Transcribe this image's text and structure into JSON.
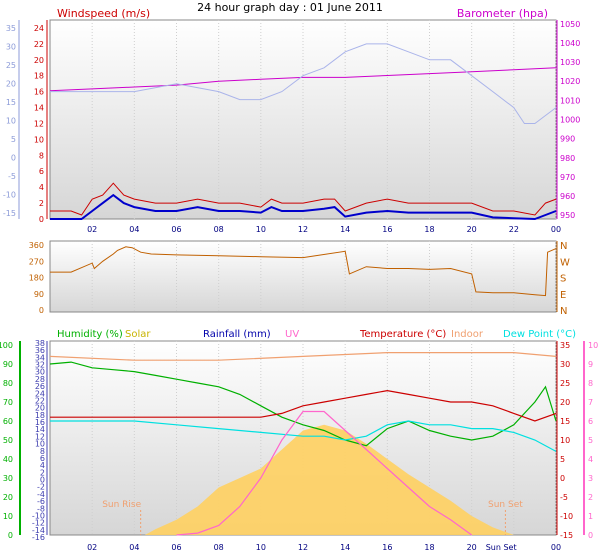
{
  "title": "24 hour graph day : 01 June 2011",
  "colors": {
    "wind": "#cc0000",
    "gust": "#cc0000",
    "avg": "#0000cc",
    "baro": "#cc00cc",
    "temp_light": "#aab4ea",
    "dir": "#c06000",
    "humidity": "#00b000",
    "solar": "#ffd060",
    "rainfall": "#0000aa",
    "uv": "#ff66cc",
    "temperature": "#cc0000",
    "indoor": "#f0a070",
    "dewpoint": "#00e0e0"
  },
  "x_ticks": [
    "02",
    "04",
    "06",
    "08",
    "10",
    "12",
    "14",
    "16",
    "18",
    "20",
    "22",
    "00"
  ],
  "x_ticks_bottom": [
    "02",
    "04",
    "06",
    "08",
    "10",
    "12",
    "14",
    "16",
    "18",
    "20",
    "Sun Set",
    "00"
  ],
  "chart_data": [
    {
      "type": "line",
      "title": "Windspeed (m/s)",
      "right_label": "Barometer (hpa)",
      "left_axis_blue": [
        "35",
        "30",
        "25",
        "20",
        "15",
        "10",
        "5",
        "0",
        "-5",
        "-10",
        "-15"
      ],
      "yticks_left": [
        "24",
        "22",
        "20",
        "18",
        "16",
        "14",
        "12",
        "10",
        "8",
        "6",
        "4",
        "2",
        "0"
      ],
      "yticks_right": [
        "1050",
        "1040",
        "1030",
        "1020",
        "1010",
        "1000",
        "990",
        "980",
        "970",
        "960",
        "950"
      ],
      "ylim_left": [
        0,
        25
      ],
      "ylim_right": [
        948,
        1052
      ],
      "series": [
        {
          "name": "Windspeed (m/s)",
          "role": "gust",
          "x": [
            0,
            1,
            1.5,
            2,
            2.5,
            3,
            3.5,
            4,
            5,
            6,
            7,
            8,
            9,
            10,
            10.5,
            11,
            12,
            13,
            13.5,
            14,
            15,
            16,
            17,
            18,
            19,
            20,
            21,
            22,
            23,
            23.5,
            24
          ],
          "y": [
            1,
            1,
            0.5,
            2.5,
            3,
            4.5,
            3,
            2.5,
            2,
            2,
            2.5,
            2,
            2,
            1.5,
            2.5,
            2,
            2,
            2.5,
            2.5,
            1,
            2,
            2.5,
            2,
            2,
            2,
            2,
            1,
            1,
            0.5,
            2,
            2.5
          ]
        },
        {
          "name": "Average",
          "role": "avg",
          "x": [
            0,
            1,
            1.5,
            2,
            2.5,
            3,
            3.5,
            4,
            5,
            6,
            7,
            8,
            9,
            10,
            10.5,
            11,
            12,
            13,
            13.5,
            14,
            15,
            16,
            17,
            18,
            19,
            20,
            21,
            22,
            23,
            23.5,
            24
          ],
          "y": [
            0,
            0,
            0,
            1,
            2,
            3,
            2,
            1.5,
            1,
            1,
            1.5,
            1,
            1,
            0.8,
            1.5,
            1,
            1,
            1.3,
            1.5,
            0.3,
            0.8,
            1,
            0.8,
            0.8,
            0.8,
            0.8,
            0.2,
            0.1,
            0,
            0.5,
            1
          ]
        },
        {
          "name": "Barometer (hpa)",
          "role": "baro",
          "axis": "right",
          "x": [
            0,
            2,
            4,
            6,
            8,
            10,
            12,
            14,
            16,
            18,
            20,
            22,
            24
          ],
          "y": [
            1015,
            1016,
            1017,
            1018,
            1020,
            1021,
            1022,
            1022,
            1023,
            1024,
            1025,
            1026,
            1027
          ]
        },
        {
          "name": "Temperature (secondary)",
          "role": "temp_light",
          "x": [
            0,
            2,
            4,
            6,
            8,
            9,
            10,
            11,
            12,
            13,
            14,
            15,
            16,
            17,
            18,
            19,
            20,
            21,
            22,
            22.5,
            23,
            23.5,
            24
          ],
          "y": [
            16,
            16,
            16,
            17,
            16,
            15,
            15,
            16,
            18,
            19,
            21,
            22,
            22,
            21,
            20,
            20,
            18,
            16,
            14,
            12,
            12,
            13,
            14
          ]
        }
      ]
    },
    {
      "type": "line",
      "title": "Wind direction",
      "yticks_left": [
        "360",
        "270",
        "180",
        "90",
        "0"
      ],
      "compass": [
        "N",
        "W",
        "S",
        "E",
        "N"
      ],
      "ylim": [
        0,
        360
      ],
      "series": [
        {
          "name": "Direction",
          "x": [
            0,
            1,
            2,
            2.1,
            2.5,
            3,
            3.2,
            3.6,
            3.9,
            4.3,
            4.8,
            6,
            8,
            10,
            12,
            14,
            14.2,
            15,
            16,
            17,
            18,
            19,
            20,
            20.2,
            21,
            22,
            23,
            23.5,
            23.6,
            24
          ],
          "y": [
            210,
            210,
            260,
            230,
            270,
            310,
            330,
            350,
            345,
            320,
            310,
            305,
            300,
            295,
            290,
            325,
            200,
            240,
            230,
            230,
            225,
            230,
            200,
            100,
            95,
            95,
            85,
            80,
            320,
            340
          ]
        }
      ]
    },
    {
      "type": "line",
      "series_labels": [
        "Humidity (%)",
        "Solar",
        "Rainfall (mm)",
        "UV",
        "Temperature (°C)",
        "Indoor",
        "Dew Point (°C)"
      ],
      "yticks_hum": [
        "100",
        "90",
        "80",
        "70",
        "60",
        "50",
        "40",
        "30",
        "20",
        "10",
        "0"
      ],
      "yticks_temp_left": [
        "38",
        "36",
        "34",
        "32",
        "30",
        "28",
        "26",
        "24",
        "22",
        "20",
        "18",
        "16",
        "14",
        "12",
        "10",
        "8",
        "6",
        "4",
        "2",
        "0",
        "-2",
        "-4",
        "-6",
        "-8",
        "-10",
        "-12",
        "-14",
        "-16"
      ],
      "yticks_temp_right": [
        "35",
        "30",
        "25",
        "20",
        "15",
        "10",
        "5",
        "0",
        "-5",
        "-10",
        "-15"
      ],
      "yticks_uv": [
        "10",
        "9",
        "8",
        "7",
        "6",
        "5",
        "4",
        "3",
        "2",
        "1",
        "0"
      ],
      "annotations": [
        "Sun Rise",
        "Sun Set"
      ],
      "ylim_temp": [
        -15,
        35
      ],
      "series": [
        {
          "name": "Humidity (%)",
          "role": "humidity",
          "axis": "hum",
          "x": [
            0,
            1,
            2,
            3,
            4,
            5,
            6,
            7,
            8,
            9,
            10,
            11,
            12,
            13,
            14,
            15,
            16,
            17,
            18,
            19,
            20,
            21,
            22,
            23,
            23.5,
            24
          ],
          "y": [
            90,
            91,
            88,
            87,
            86,
            84,
            82,
            80,
            78,
            74,
            68,
            62,
            58,
            55,
            50,
            47,
            56,
            60,
            55,
            52,
            50,
            52,
            58,
            70,
            78,
            60
          ]
        },
        {
          "name": "Temperature (°C)",
          "role": "temperature",
          "axis": "temp",
          "x": [
            0,
            2,
            4,
            6,
            8,
            10,
            11,
            12,
            13,
            14,
            15,
            16,
            17,
            18,
            19,
            20,
            21,
            22,
            23,
            24
          ],
          "y": [
            16,
            16,
            16,
            16,
            16,
            16,
            17,
            19,
            20,
            21,
            22,
            23,
            22,
            21,
            20,
            20,
            19,
            17,
            15,
            17
          ]
        },
        {
          "name": "Dew Point (°C)",
          "role": "dewpoint",
          "axis": "temp",
          "x": [
            0,
            2,
            4,
            6,
            8,
            10,
            12,
            13,
            14,
            15,
            16,
            17,
            18,
            19,
            20,
            21,
            22,
            23,
            24
          ],
          "y": [
            15,
            15,
            15,
            14,
            13,
            12,
            11,
            11,
            10,
            11,
            14,
            15,
            14,
            14,
            13,
            13,
            12,
            10,
            7
          ]
        },
        {
          "name": "Indoor",
          "role": "indoor",
          "axis": "temp",
          "x": [
            0,
            4,
            8,
            12,
            16,
            20,
            22,
            24
          ],
          "y": [
            32,
            31,
            31,
            32,
            33,
            33,
            33,
            32
          ]
        },
        {
          "name": "UV",
          "role": "uv",
          "axis": "uv",
          "x": [
            6,
            7,
            8,
            9,
            10,
            11,
            12,
            13,
            14,
            15,
            16,
            17,
            18,
            19,
            20
          ],
          "y": [
            0,
            0.1,
            0.5,
            1.5,
            3,
            5,
            6.5,
            6.5,
            5.5,
            4.5,
            3.5,
            2.5,
            1.5,
            0.8,
            0
          ]
        },
        {
          "name": "Solar",
          "role": "solar",
          "axis": "uv",
          "x": [
            4.5,
            5,
            6,
            7,
            8,
            9,
            10,
            11,
            12,
            13,
            14,
            15,
            16,
            17,
            18,
            19,
            20,
            21,
            22
          ],
          "y": [
            0,
            0.3,
            0.8,
            1.5,
            2.5,
            3,
            3.5,
            4.5,
            5.5,
            5.8,
            5.5,
            4.8,
            4,
            3.2,
            2.5,
            1.8,
            1,
            0.4,
            0
          ]
        }
      ]
    }
  ]
}
